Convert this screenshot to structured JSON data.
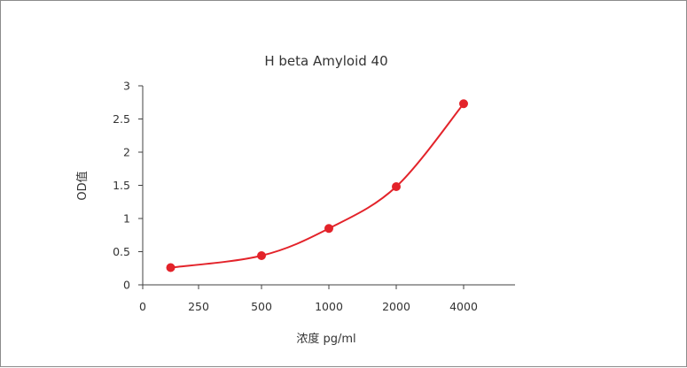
{
  "chart_data": {
    "type": "scatter",
    "title": "H beta Amyloid 40",
    "xlabel": "浓度 pg/ml",
    "ylabel": "OD值",
    "x_tick_labels": [
      "0",
      "250",
      "500",
      "1000",
      "2000",
      "4000"
    ],
    "y_tick_labels": [
      "0",
      "0.5",
      "1",
      "1.5",
      "2",
      "2.5",
      "3"
    ],
    "ylim": [
      0,
      3
    ],
    "x_scale": "categorical-ticks",
    "series": [
      {
        "x": [
          125,
          500,
          1000,
          2000,
          4000
        ],
        "y": [
          0.26,
          0.44,
          0.85,
          1.48,
          2.73
        ],
        "marker": "circle",
        "line": "smooth-fit"
      }
    ],
    "grid": false,
    "legend": "none",
    "colors": {
      "series": "#e3232a",
      "axis": "#404040",
      "text": "#333333",
      "border": "#8c8c8c"
    }
  }
}
